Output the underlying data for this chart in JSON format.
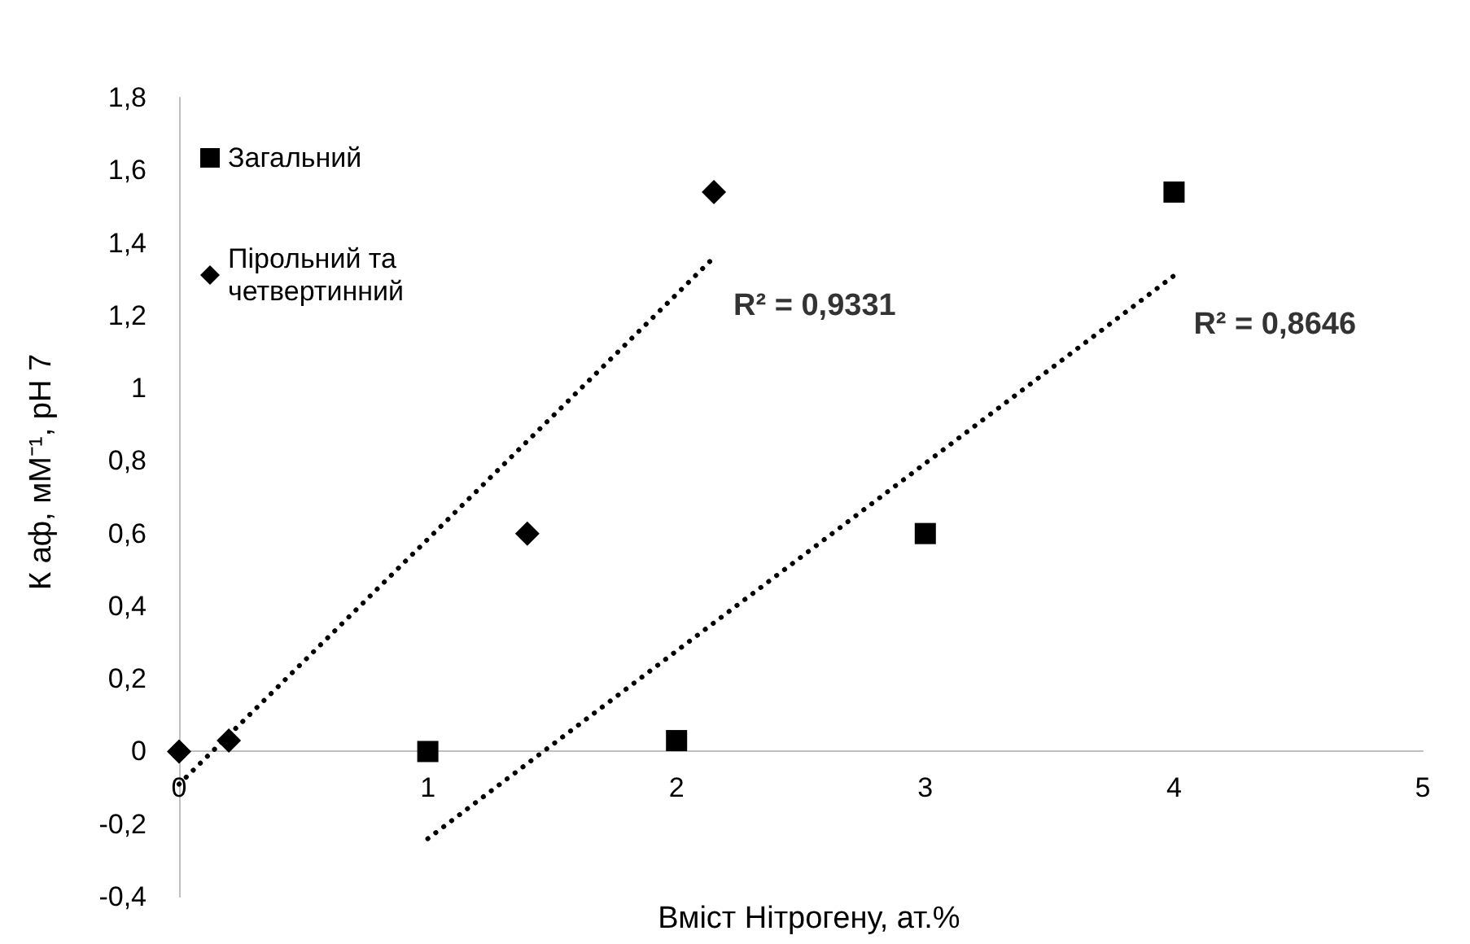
{
  "chart_data": {
    "type": "scatter",
    "xlabel": "Вміст Нітрогену, ат.%",
    "ylabel": "К аф, мМ⁻¹, рН 7",
    "xlim": [
      0,
      5
    ],
    "xticks": [
      0,
      1,
      2,
      3,
      4,
      5
    ],
    "ylim": [
      -0.4,
      1.8
    ],
    "yticks": [
      {
        "value": -0.4,
        "label": "-0,4"
      },
      {
        "value": -0.2,
        "label": "-0,2"
      },
      0,
      {
        "value": 0.2,
        "label": "0,2"
      },
      {
        "value": 0.4,
        "label": "0,4"
      },
      {
        "value": 0.6,
        "label": "0,6"
      },
      {
        "value": 0.8,
        "label": "0,8"
      },
      1,
      {
        "value": 1.2,
        "label": "1,2"
      },
      {
        "value": 1.4,
        "label": "1,4"
      },
      {
        "value": 1.6,
        "label": "1,6"
      },
      {
        "value": 1.8,
        "label": "1,8"
      }
    ],
    "grid": false,
    "legend": "top left",
    "series": [
      {
        "name": "Загальний",
        "color": "#000000",
        "marker": "square",
        "x": [
          1,
          2,
          3,
          4
        ],
        "values": [
          0,
          0.03,
          0.6,
          1.54
        ]
      },
      {
        "name": "Пірольний та четвертинний",
        "color": "#000000",
        "marker": "diamond",
        "x": [
          0,
          0.2,
          1.4,
          2.15
        ],
        "values": [
          0,
          0.03,
          0.6,
          1.54
        ]
      },
      {
        "type": "line",
        "color": "#000000",
        "line_style": "dotted",
        "marker": "none",
        "x": [
          0,
          2.15
        ],
        "values": [
          -0.09,
          1.36
        ]
      },
      {
        "type": "line",
        "color": "#000000",
        "line_style": "dotted",
        "marker": "none",
        "x": [
          1,
          4
        ],
        "values": [
          -0.24,
          1.31
        ]
      }
    ],
    "annotations": [
      "R² = 0,9331",
      "R² = 0,8646"
    ]
  }
}
